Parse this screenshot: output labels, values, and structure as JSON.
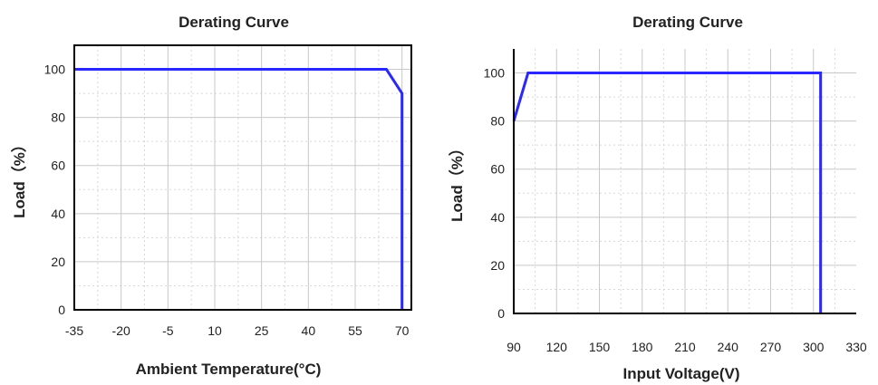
{
  "chart_data": [
    {
      "type": "line",
      "title": "Derating Curve",
      "xlabel": "Ambient Temperature(°C)",
      "ylabel": "Load（%）",
      "x_ticks": [
        -35,
        -20,
        -5,
        10,
        25,
        40,
        55,
        70
      ],
      "y_ticks": [
        0,
        20,
        40,
        60,
        80,
        100
      ],
      "xlim": [
        -35,
        73
      ],
      "ylim": [
        0,
        110
      ],
      "grid": true,
      "series": [
        {
          "color": "#2828ff",
          "points": [
            [
              -35,
              100
            ],
            [
              65,
              100
            ],
            [
              70,
              90
            ],
            [
              70,
              0
            ]
          ]
        }
      ]
    },
    {
      "type": "line",
      "title": "Derating Curve",
      "xlabel": "Input Voltage(V)",
      "ylabel": "Load（%）",
      "x_ticks": [
        90,
        120,
        150,
        180,
        210,
        240,
        270,
        300,
        330
      ],
      "y_ticks": [
        0,
        20,
        40,
        60,
        80,
        100
      ],
      "xlim": [
        90,
        330
      ],
      "ylim": [
        0,
        110
      ],
      "grid": true,
      "series": [
        {
          "color": "#2828ff",
          "points": [
            [
              90,
              80
            ],
            [
              100,
              100
            ],
            [
              305,
              100
            ],
            [
              305,
              0
            ]
          ]
        }
      ]
    }
  ]
}
